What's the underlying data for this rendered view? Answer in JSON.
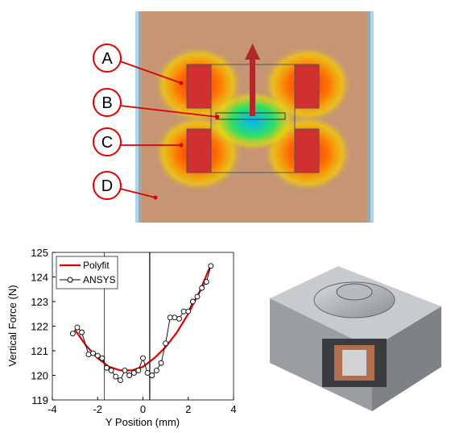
{
  "figure_labels": [
    "A",
    "B",
    "C",
    "D"
  ],
  "chart_data": {
    "type": "line",
    "xlabel": "Y Position (mm)",
    "ylabel": "Vertical Force (N)",
    "xlim": [
      -4,
      4
    ],
    "xticks": [
      -4,
      -2,
      0,
      2,
      4
    ],
    "ylim": [
      119,
      125
    ],
    "yticks": [
      119,
      120,
      121,
      122,
      123,
      124,
      125
    ],
    "vlines": [
      -1.7,
      0.3
    ],
    "legend": "upper left",
    "series": [
      {
        "name": "Polyfit",
        "color": "#e00000",
        "marker": "none",
        "x": [
          -3,
          -2.5,
          -2,
          -1.5,
          -1,
          -0.5,
          0,
          0.5,
          1,
          1.5,
          2,
          2.5,
          3
        ],
        "values": [
          121.85,
          121.2,
          120.7,
          120.35,
          120.2,
          120.2,
          120.35,
          120.7,
          121.15,
          121.75,
          122.5,
          123.4,
          124.5
        ]
      },
      {
        "name": "ANSYS",
        "color": "#000000",
        "marker": "circle",
        "x": [
          -3.1,
          -2.9,
          -2.7,
          -2.4,
          -2.2,
          -2.0,
          -1.8,
          -1.6,
          -1.4,
          -1.2,
          -1.0,
          -0.8,
          -0.6,
          -0.4,
          -0.2,
          0.0,
          0.2,
          0.4,
          0.6,
          0.8,
          1.0,
          1.2,
          1.4,
          1.6,
          1.8,
          2.0,
          2.2,
          2.4,
          2.6,
          2.8,
          3.0
        ],
        "values": [
          121.7,
          121.95,
          121.75,
          120.85,
          120.9,
          120.8,
          120.7,
          120.3,
          120.2,
          119.95,
          119.8,
          120.2,
          120.0,
          120.1,
          120.2,
          120.7,
          120.1,
          120.0,
          120.2,
          120.5,
          121.3,
          122.35,
          122.35,
          122.3,
          122.6,
          122.6,
          123.0,
          123.2,
          123.55,
          123.8,
          124.45
        ]
      }
    ]
  }
}
